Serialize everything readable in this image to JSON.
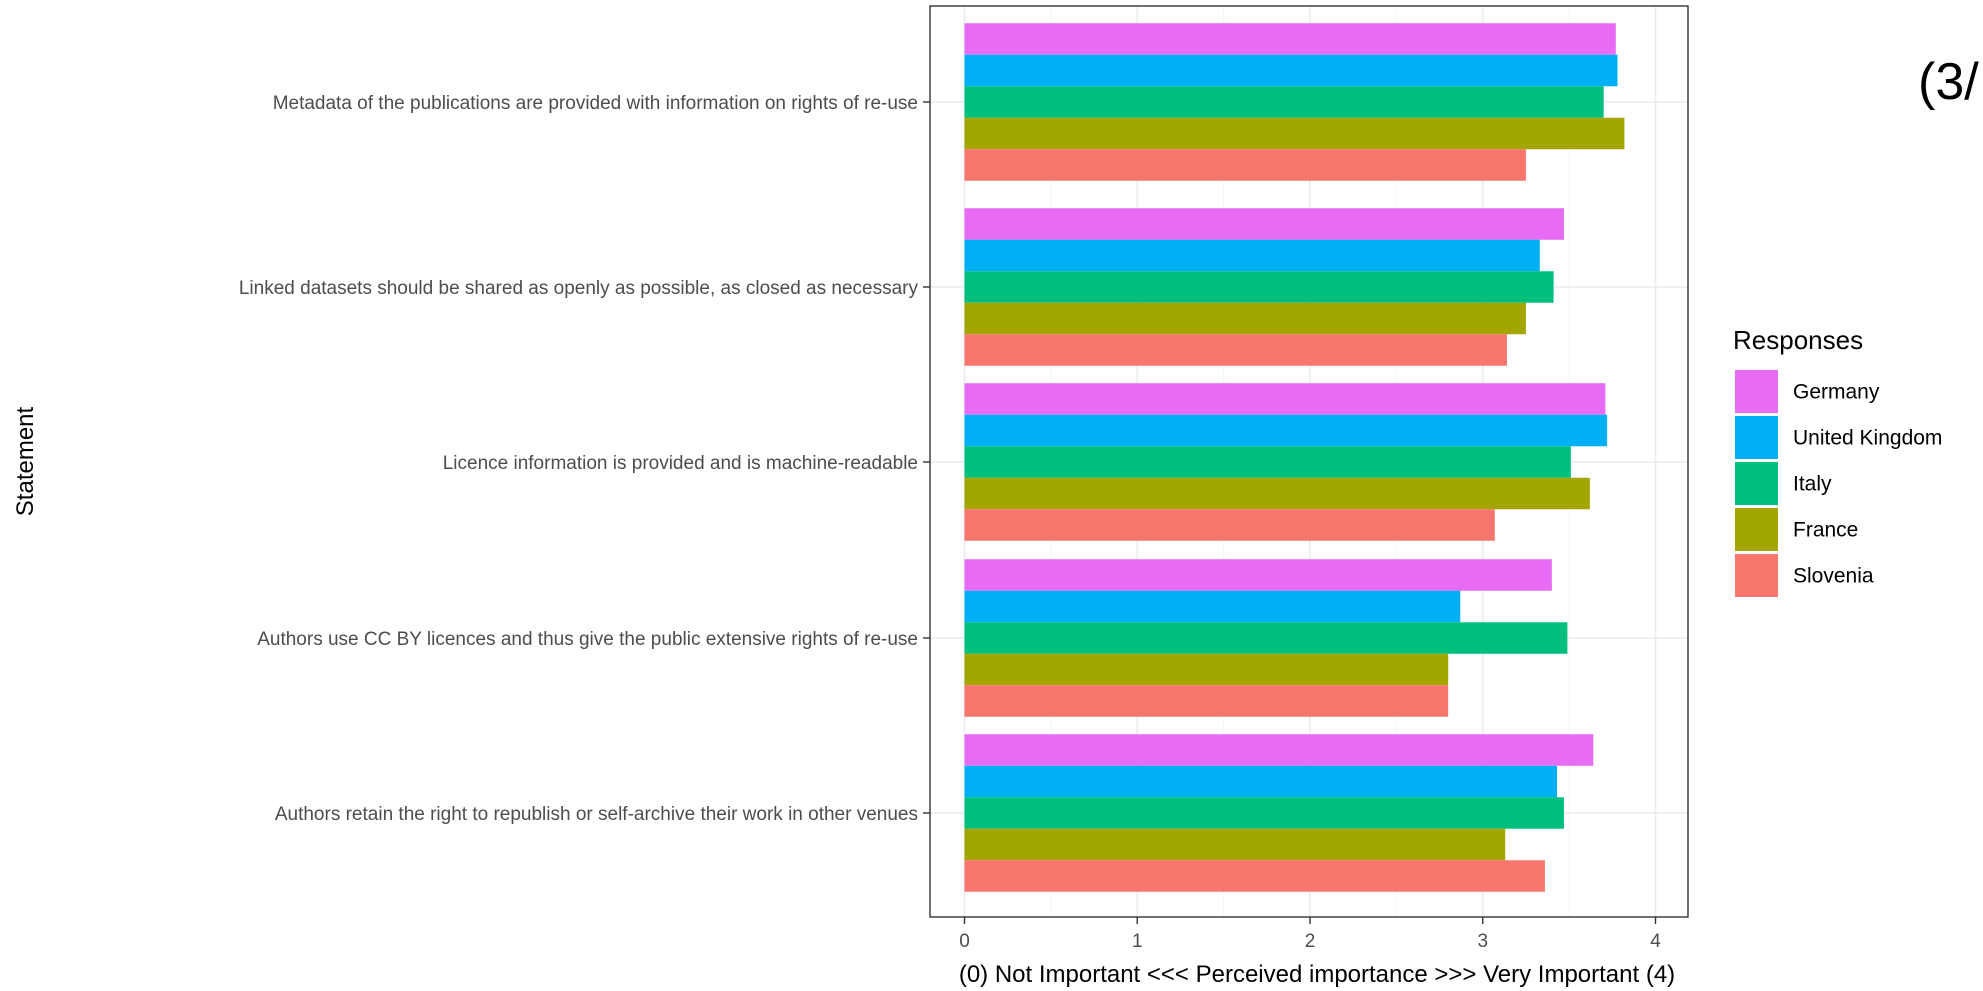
{
  "corner_label": "(3/",
  "chart_data": {
    "type": "bar",
    "orientation": "horizontal",
    "title": "",
    "xlabel": "(0) Not Important <<< Perceived importance >>> Very Important (4)",
    "ylabel": "Statement",
    "xlim": [
      -0.2,
      4.2
    ],
    "xticks": [
      "0",
      "1",
      "2",
      "3",
      "4"
    ],
    "grid": true,
    "legend_title": "Responses",
    "legend_position": "right",
    "categories": [
      "Metadata of the publications are provided with information on rights of re-use",
      "Linked datasets should be shared as openly as possible, as closed as necessary",
      "Licence information is provided and is machine-readable",
      "Authors use CC BY licences and thus give the public extensive rights of re-use",
      "Authors retain the right to republish or self-archive their work in other venues"
    ],
    "series": [
      {
        "name": "Germany",
        "color": "#E76BF3",
        "values": [
          3.77,
          3.47,
          3.71,
          3.4,
          3.64
        ]
      },
      {
        "name": "United Kingdom",
        "color": "#00B0F6",
        "values": [
          3.78,
          3.33,
          3.72,
          2.87,
          3.43
        ]
      },
      {
        "name": "Italy",
        "color": "#00BF7D",
        "values": [
          3.7,
          3.41,
          3.51,
          3.49,
          3.47
        ]
      },
      {
        "name": "France",
        "color": "#A3A500",
        "values": [
          3.82,
          3.25,
          3.62,
          2.8,
          3.13
        ]
      },
      {
        "name": "Slovenia",
        "color": "#F8766D",
        "values": [
          3.25,
          3.14,
          3.07,
          2.8,
          3.36
        ]
      }
    ]
  }
}
